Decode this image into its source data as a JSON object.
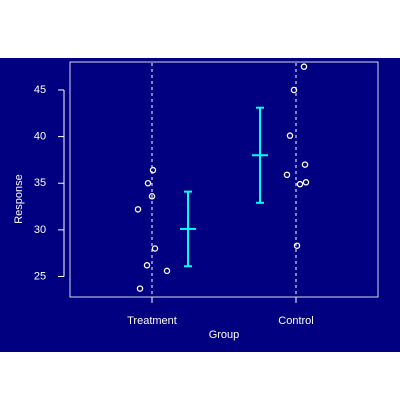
{
  "chart_data": {
    "type": "scatter",
    "title": "",
    "xlabel": "Group",
    "ylabel": "Response",
    "categories": [
      "Treatment",
      "Control"
    ],
    "ylim": [
      22.8,
      48.0
    ],
    "yticks": [
      25,
      30,
      35,
      40,
      45
    ],
    "grid": false,
    "points": [
      {
        "group": "Treatment",
        "values": [
          36.4,
          35.0,
          33.6,
          32.2,
          28.0,
          26.2,
          25.6,
          23.7
        ]
      },
      {
        "group": "Control",
        "values": [
          47.5,
          45.0,
          40.1,
          37.0,
          35.9,
          35.1,
          34.9,
          28.3
        ]
      }
    ],
    "intervals": [
      {
        "group": "Treatment",
        "mean": 30.1,
        "low": 26.1,
        "high": 34.1
      },
      {
        "group": "Control",
        "mean": 38.0,
        "low": 32.9,
        "high": 43.1
      }
    ],
    "colors": {
      "background": "#000080",
      "foreground": "#ffffff",
      "interval": "#00ffff",
      "outer": "#ffffff"
    }
  }
}
